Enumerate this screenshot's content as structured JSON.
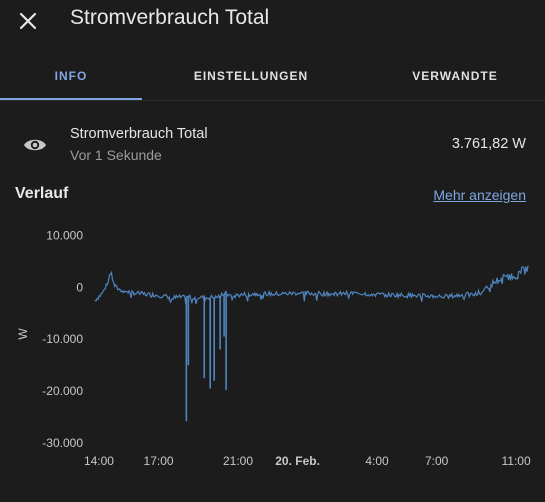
{
  "dialog": {
    "title": "Stromverbrauch Total",
    "close_icon": "close-icon"
  },
  "tabs": [
    {
      "label": "INFO",
      "active": true
    },
    {
      "label": "EINSTELLUNGEN",
      "active": false
    },
    {
      "label": "VERWANDTE",
      "active": false
    }
  ],
  "entity": {
    "icon": "eye-icon",
    "name": "Stromverbrauch Total",
    "last_changed": "Vor 1 Sekunde",
    "state": "3.761,82 W"
  },
  "history": {
    "title": "Verlauf",
    "more_link": "Mehr anzeigen"
  },
  "colors": {
    "accent": "#7fa6e0",
    "series": "#4f85bf",
    "background": "#1c1c1c"
  },
  "chart_data": {
    "type": "line",
    "ylabel": "W",
    "ylim": [
      -30000,
      12000
    ],
    "yticks": [
      10000,
      0,
      -10000,
      -20000,
      -30000
    ],
    "ytick_labels": [
      "10.000",
      "0",
      "-10.000",
      "-20.000",
      "-30.000"
    ],
    "xlim": [
      13.8,
      35.6
    ],
    "xticks": [
      14,
      17,
      21,
      24,
      28,
      31,
      35
    ],
    "xtick_labels": [
      "14:00",
      "17:00",
      "21:00",
      "20. Feb.",
      "4:00",
      "7:00",
      "11:00"
    ],
    "xtick_bold": [
      false,
      false,
      false,
      true,
      false,
      false,
      false
    ],
    "grid": false,
    "legend": "none",
    "series": [
      {
        "x": [
          13.8,
          14.2,
          14.5,
          14.6,
          14.7,
          14.8,
          15.0,
          15.5,
          16.0,
          16.5,
          17.0,
          17.4,
          17.6,
          17.8,
          18.1,
          18.3,
          18.6,
          18.9,
          19.1,
          19.3,
          19.5,
          19.7,
          19.9,
          20.0,
          20.2,
          20.4,
          20.6,
          20.8,
          21.0,
          22.0,
          23.0,
          24.0,
          25.0,
          26.0,
          27.0,
          28.0,
          29.0,
          30.0,
          31.0,
          31.5,
          32.0,
          32.5,
          32.8,
          33.0,
          33.3,
          33.5,
          34.0,
          34.5,
          34.9,
          35.2,
          35.6,
          36.0,
          36.5,
          37.0,
          37.5,
          38.0
        ],
        "y": [
          -2500,
          -1000,
          1500,
          4000,
          1000,
          200,
          -400,
          -900,
          -1200,
          -1400,
          -1500,
          -1800,
          -2500,
          -2000,
          -1900,
          -2000,
          -1900,
          -2000,
          -1800,
          -2100,
          -2000,
          -1900,
          -2000,
          -1800,
          -1500,
          -1200,
          -1600,
          -1700,
          -1500,
          -1200,
          -1300,
          -1100,
          -1200,
          -1300,
          -1100,
          -1400,
          -1500,
          -1600,
          -1700,
          -1800,
          -1600,
          -1400,
          -1500,
          -1300,
          -1000,
          0,
          1200,
          2200,
          2000,
          3000,
          3800,
          3500,
          3000,
          3200,
          3500,
          3761.82
        ],
        "spikes": [
          {
            "x": 18.4,
            "y": -25800
          },
          {
            "x": 18.5,
            "y": -15000
          },
          {
            "x": 19.3,
            "y": -17500
          },
          {
            "x": 19.6,
            "y": -19500
          },
          {
            "x": 19.8,
            "y": -18000
          },
          {
            "x": 20.1,
            "y": -12000
          },
          {
            "x": 20.3,
            "y": -9500
          },
          {
            "x": 20.4,
            "y": -19800
          }
        ]
      }
    ]
  }
}
